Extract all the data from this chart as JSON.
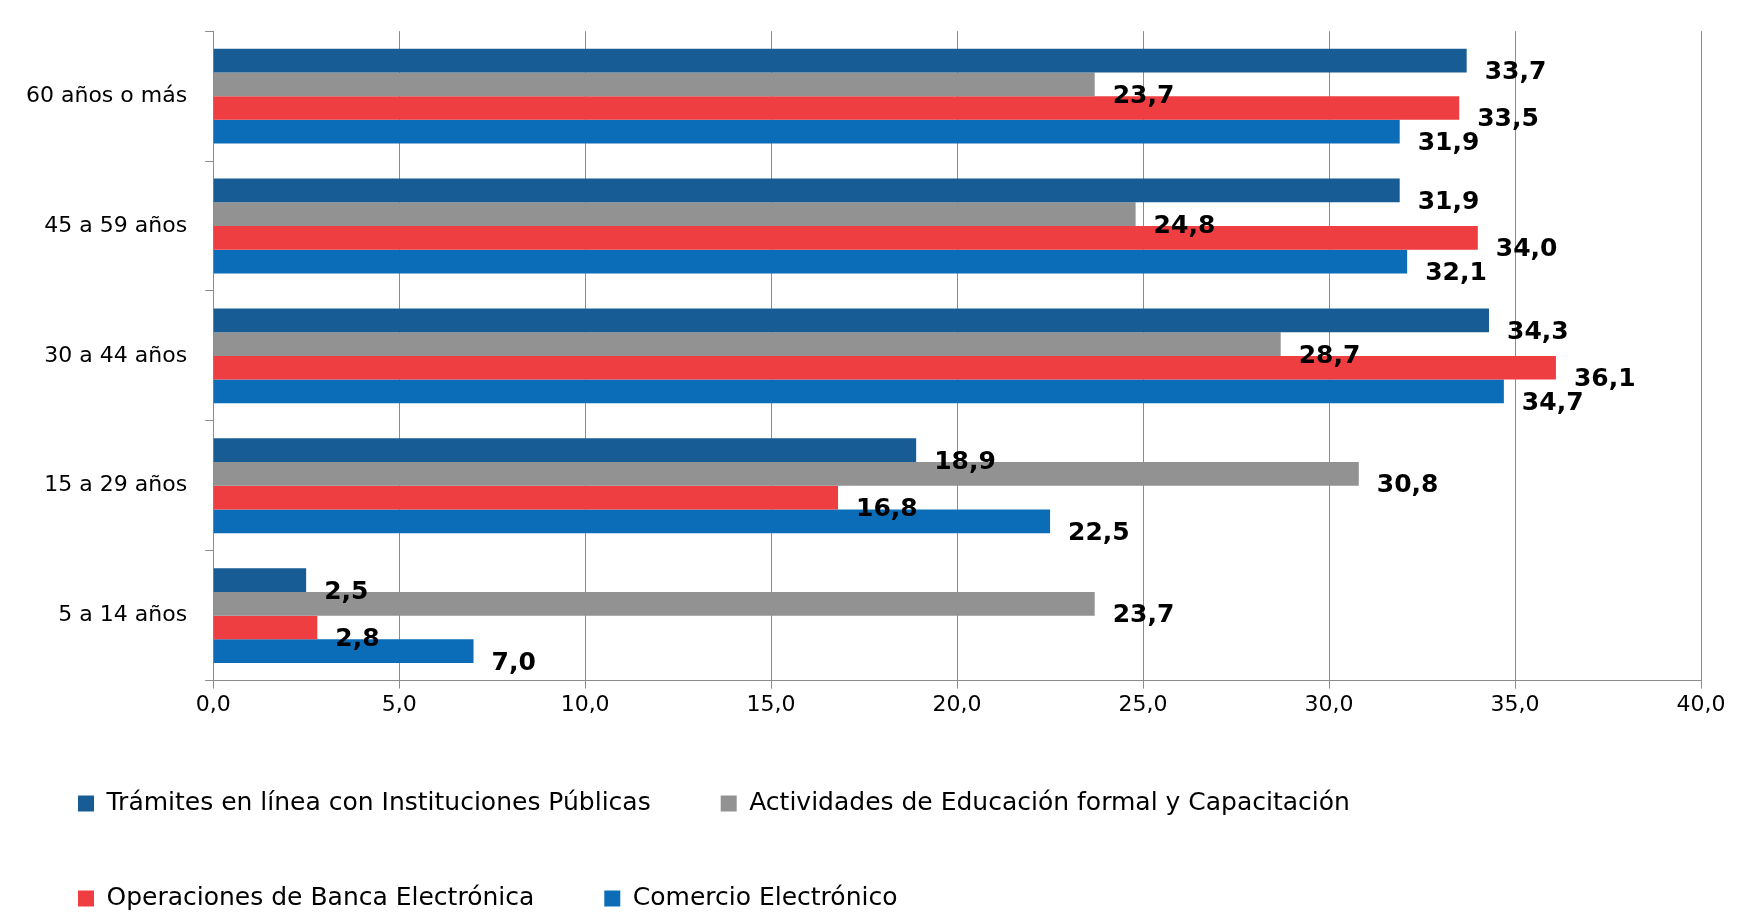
{
  "chart_data": {
    "type": "bar",
    "orientation": "horizontal",
    "categories": [
      "60 años o más",
      "45 a 59 años",
      "30 a 44 años",
      "15 a 29 años",
      "5 a 14 años"
    ],
    "series": [
      {
        "name": "Trámites en línea con Instituciones Públicas",
        "color": "#175c94",
        "values": [
          33.7,
          31.9,
          34.3,
          18.9,
          2.5
        ],
        "value_labels": [
          "33,7",
          "31,9",
          "34,3",
          "18,9",
          "2,5"
        ]
      },
      {
        "name": "Actividades de Educación formal y Capacitación",
        "color": "#929292",
        "values": [
          23.7,
          24.8,
          28.7,
          30.8,
          23.7
        ],
        "value_labels": [
          "23,7",
          "24,8",
          "28,7",
          "30,8",
          "23,7"
        ]
      },
      {
        "name": "Operaciones de Banca Electrónica",
        "color": "#ef3e42",
        "values": [
          33.5,
          34.0,
          36.1,
          16.8,
          2.8
        ],
        "value_labels": [
          "33,5",
          "34,0",
          "36,1",
          "16,8",
          "2,8"
        ]
      },
      {
        "name": "Comercio Electrónico",
        "color": "#0b6db7",
        "values": [
          31.9,
          32.1,
          34.7,
          22.5,
          7.0
        ],
        "value_labels": [
          "31,9",
          "32,1",
          "34,7",
          "22,5",
          "7,0"
        ]
      }
    ],
    "xlim": [
      0,
      40
    ],
    "xticks": [
      {
        "value": 0,
        "label": "0,0"
      },
      {
        "value": 5,
        "label": "5,0"
      },
      {
        "value": 10,
        "label": "10,0"
      },
      {
        "value": 15,
        "label": "15,0"
      },
      {
        "value": 20,
        "label": "20,0"
      },
      {
        "value": 25,
        "label": "25,0"
      },
      {
        "value": 30,
        "label": "30,0"
      },
      {
        "value": 35,
        "label": "35,0"
      },
      {
        "value": 40,
        "label": "40,0"
      }
    ],
    "grid": "x",
    "legend": "bottom"
  }
}
